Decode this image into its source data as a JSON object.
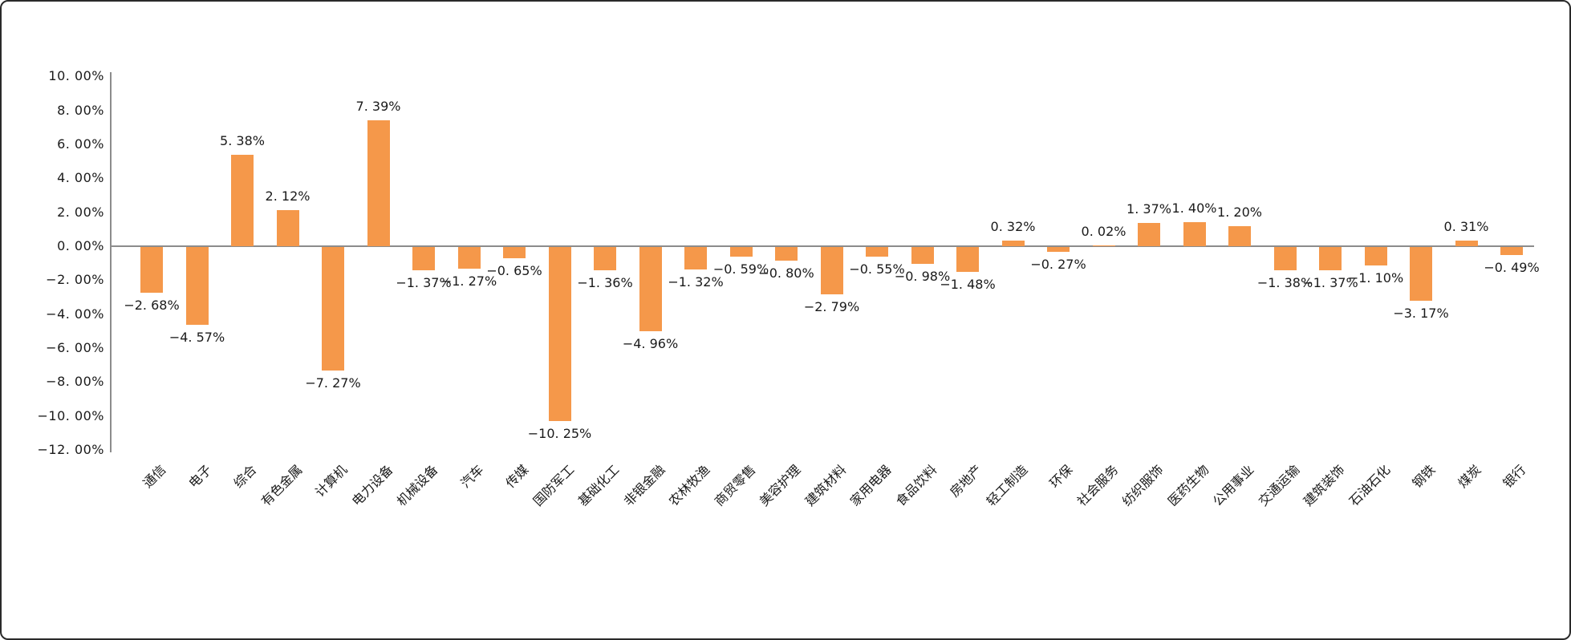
{
  "chart_data": {
    "type": "bar",
    "title": "",
    "xlabel": "",
    "ylabel": "",
    "categories": [
      "通信",
      "电子",
      "综合",
      "有色金属",
      "计算机",
      "电力设备",
      "机械设备",
      "汽车",
      "传媒",
      "国防军工",
      "基础化工",
      "非银金融",
      "农林牧渔",
      "商贸零售",
      "美容护理",
      "建筑材料",
      "家用电器",
      "食品饮料",
      "房地产",
      "轻工制造",
      "环保",
      "社会服务",
      "纺织服饰",
      "医药生物",
      "公用事业",
      "交通运输",
      "建筑装饰",
      "石油石化",
      "钢铁",
      "煤炭",
      "银行"
    ],
    "values": [
      -2.68,
      -4.57,
      5.38,
      2.12,
      -7.27,
      7.39,
      -1.37,
      -1.27,
      -0.65,
      -10.25,
      -1.36,
      -4.96,
      -1.32,
      -0.59,
      -0.8,
      -2.79,
      -0.55,
      -0.98,
      -1.48,
      0.32,
      -0.27,
      0.02,
      1.37,
      1.4,
      1.2,
      -1.38,
      -1.37,
      -1.1,
      -3.17,
      0.31,
      -0.49
    ],
    "value_labels": [
      "−2. 68%",
      "−4. 57%",
      "5. 38%",
      "2. 12%",
      "−7. 27%",
      "7. 39%",
      "−1. 37%",
      "−1. 27%",
      "−0. 65%",
      "−10. 25%",
      "−1. 36%",
      "−4. 96%",
      "−1. 32%",
      "−0. 59%",
      "−0. 80%",
      "−2. 79%",
      "−0. 55%",
      "−0. 98%",
      "−1. 48%",
      "0. 32%",
      "−0. 27%",
      "0. 02%",
      "1. 37%",
      "1. 40%",
      "1. 20%",
      "−1. 38%",
      "−1. 37%",
      "−1. 10%",
      "−3. 17%",
      "0. 31%",
      "−0. 49%"
    ],
    "y_ticks": [
      "10. 00%",
      "8. 00%",
      "6. 00%",
      "4. 00%",
      "2. 00%",
      "0. 00%",
      "−2. 00%",
      "−4. 00%",
      "−6. 00%",
      "−8. 00%",
      "−10. 00%",
      "−12. 00%"
    ],
    "y_tick_values": [
      10,
      8,
      6,
      4,
      2,
      0,
      -2,
      -4,
      -6,
      -8,
      -10,
      -12
    ],
    "ylim": [
      -12,
      10
    ],
    "grid": false,
    "legend": "none",
    "value_label_position": "outside-end",
    "x_label_rotation": 45,
    "bar_color": "#F5984A",
    "axis_color": "#8C8C8C",
    "text_color": "#1A1A1A"
  }
}
